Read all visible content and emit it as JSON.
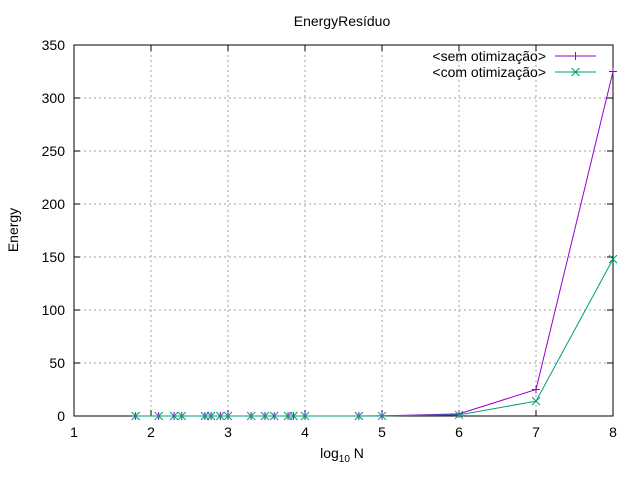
{
  "chart_data": {
    "type": "line",
    "title": "EnergyResíduo",
    "xlabel": "log",
    "xlabel_sub": "10",
    "xlabel_suffix": " N",
    "ylabel": "Energy",
    "xlim": [
      1,
      8
    ],
    "ylim": [
      0,
      350
    ],
    "x_ticks": [
      "1",
      "2",
      "3",
      "4",
      "5",
      "6",
      "7",
      "8"
    ],
    "y_ticks": [
      "0",
      "50",
      "100",
      "150",
      "200",
      "250",
      "300",
      "350"
    ],
    "grid": true,
    "legend_position": "top-right",
    "series": [
      {
        "name": "<sem otimização>",
        "color": "#9400d3",
        "marker": "plus",
        "x": [
          1.8,
          2.1,
          2.3,
          2.4,
          2.7,
          2.78,
          2.9,
          3.0,
          3.3,
          3.48,
          3.6,
          3.78,
          3.85,
          4.0,
          4.7,
          5.0,
          6.0,
          7.0,
          8.0
        ],
        "y": [
          0,
          0,
          0,
          0,
          0,
          0,
          0,
          0,
          0,
          0,
          0,
          0,
          0,
          0,
          0,
          0.1,
          2,
          25,
          325
        ]
      },
      {
        "name": "<com otimização>",
        "color": "#009e73",
        "marker": "cross",
        "x": [
          1.8,
          2.1,
          2.3,
          2.4,
          2.7,
          2.78,
          2.9,
          3.0,
          3.3,
          3.48,
          3.6,
          3.78,
          3.85,
          4.0,
          4.7,
          5.0,
          6.0,
          7.0,
          8.0
        ],
        "y": [
          0,
          0,
          0,
          0,
          0,
          0,
          0,
          0,
          0,
          0,
          0,
          0,
          0,
          0,
          0,
          0.05,
          1,
          14,
          148
        ]
      }
    ]
  }
}
